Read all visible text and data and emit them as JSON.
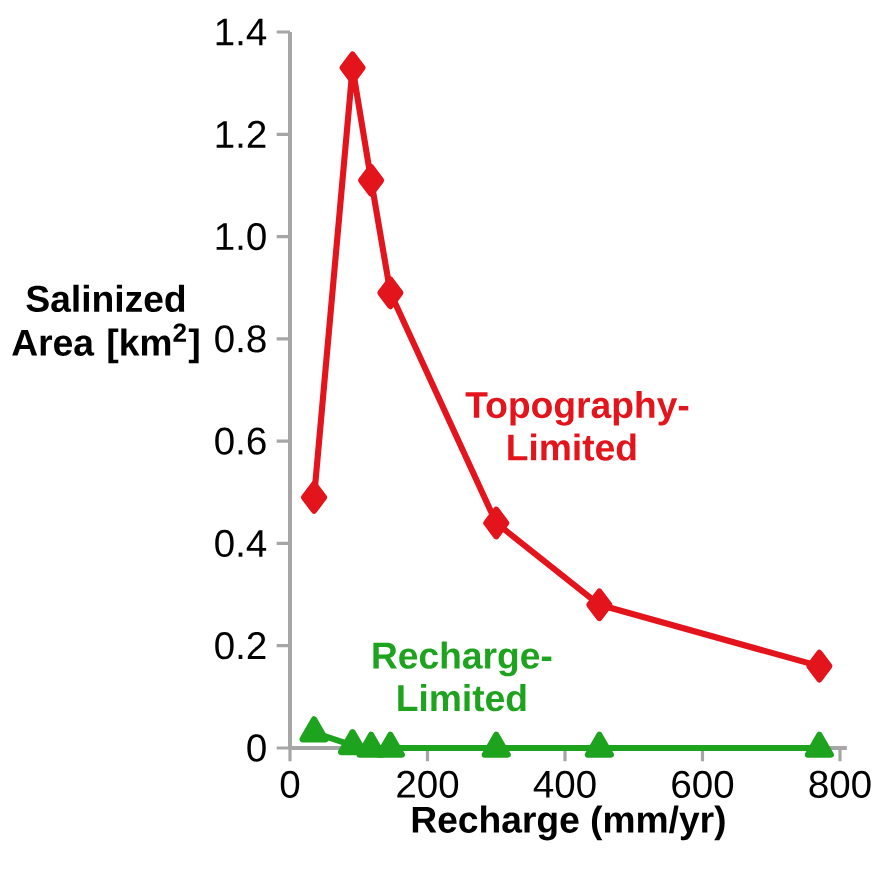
{
  "chart_data": {
    "type": "line",
    "xlabel": "Recharge (mm/yr)",
    "ylabel": "Salinized Area [km$^{2}$]",
    "xlim": [
      0,
      810
    ],
    "xticks": [
      0,
      200,
      400,
      600,
      800
    ],
    "ylim": [
      0,
      1.4
    ],
    "yticks": [
      0,
      0.2,
      0.4,
      0.6,
      0.8,
      {
        "value": 1,
        "label": "1.0"
      },
      1.2,
      1.4
    ],
    "grid": false,
    "legend": false,
    "line_style": "solid",
    "series": [
      {
        "name": "Topography-Limited",
        "color": "#e3141b",
        "marker": "diamond",
        "x": [
          35,
          91,
          118,
          146,
          300,
          450,
          770
        ],
        "values": [
          0.49,
          1.33,
          1.11,
          0.89,
          0.44,
          0.28,
          0.16
        ]
      },
      {
        "name": "Recharge-Limited",
        "color": "#1ea31e",
        "marker": "triangle",
        "x": [
          35,
          91,
          118,
          146,
          300,
          450,
          770
        ],
        "values": [
          0.03,
          0.005,
          0,
          0,
          0,
          0,
          0
        ]
      }
    ]
  }
}
